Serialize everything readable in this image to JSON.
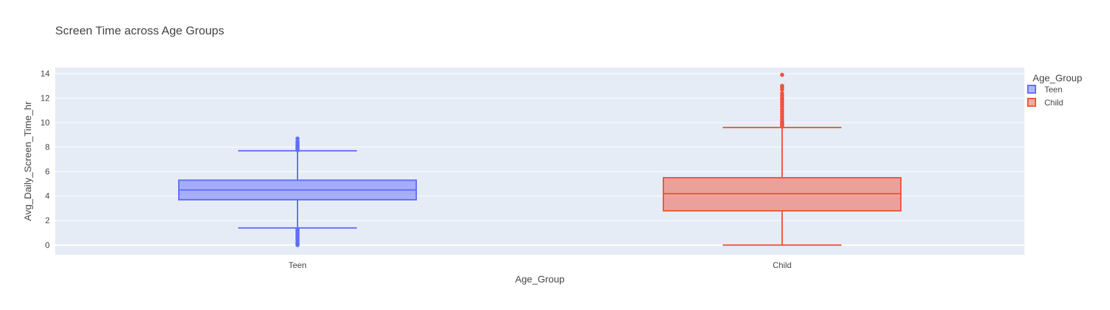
{
  "chart_data": {
    "type": "box",
    "title": "Screen Time across Age Groups",
    "xlabel": "Age_Group",
    "ylabel": "Avg_Daily_Screen_Time_hr",
    "ylim": [
      -0.8,
      14.5
    ],
    "yticks": [
      0,
      2,
      4,
      6,
      8,
      10,
      12,
      14
    ],
    "grid": true,
    "legend": {
      "title": "Age_Group",
      "position": "right"
    },
    "categories": [
      "Teen",
      "Child"
    ],
    "series": [
      {
        "name": "Teen",
        "color": "#636efa",
        "fill": "rgba(99,110,250,0.5)",
        "min": 1.4,
        "q1": 3.7,
        "median": 4.5,
        "q3": 5.3,
        "max": 7.7,
        "outliers": [
          0.0,
          0.1,
          0.2,
          0.35,
          0.5,
          0.6,
          0.7,
          0.8,
          0.95,
          1.1,
          1.2,
          1.3,
          7.75,
          7.85,
          7.95,
          8.05,
          8.15,
          8.3,
          8.45,
          8.7
        ]
      },
      {
        "name": "Child",
        "color": "#ef553b",
        "fill": "rgba(239,85,59,0.5)",
        "min": 0.0,
        "q1": 2.8,
        "median": 4.2,
        "q3": 5.5,
        "max": 9.6,
        "outliers": [
          9.7,
          9.8,
          9.9,
          10.0,
          10.1,
          10.3,
          10.5,
          10.7,
          10.9,
          11.1,
          11.3,
          11.5,
          11.7,
          11.9,
          12.0,
          12.2,
          12.4,
          12.7,
          12.9,
          13.0,
          13.9
        ]
      }
    ]
  }
}
